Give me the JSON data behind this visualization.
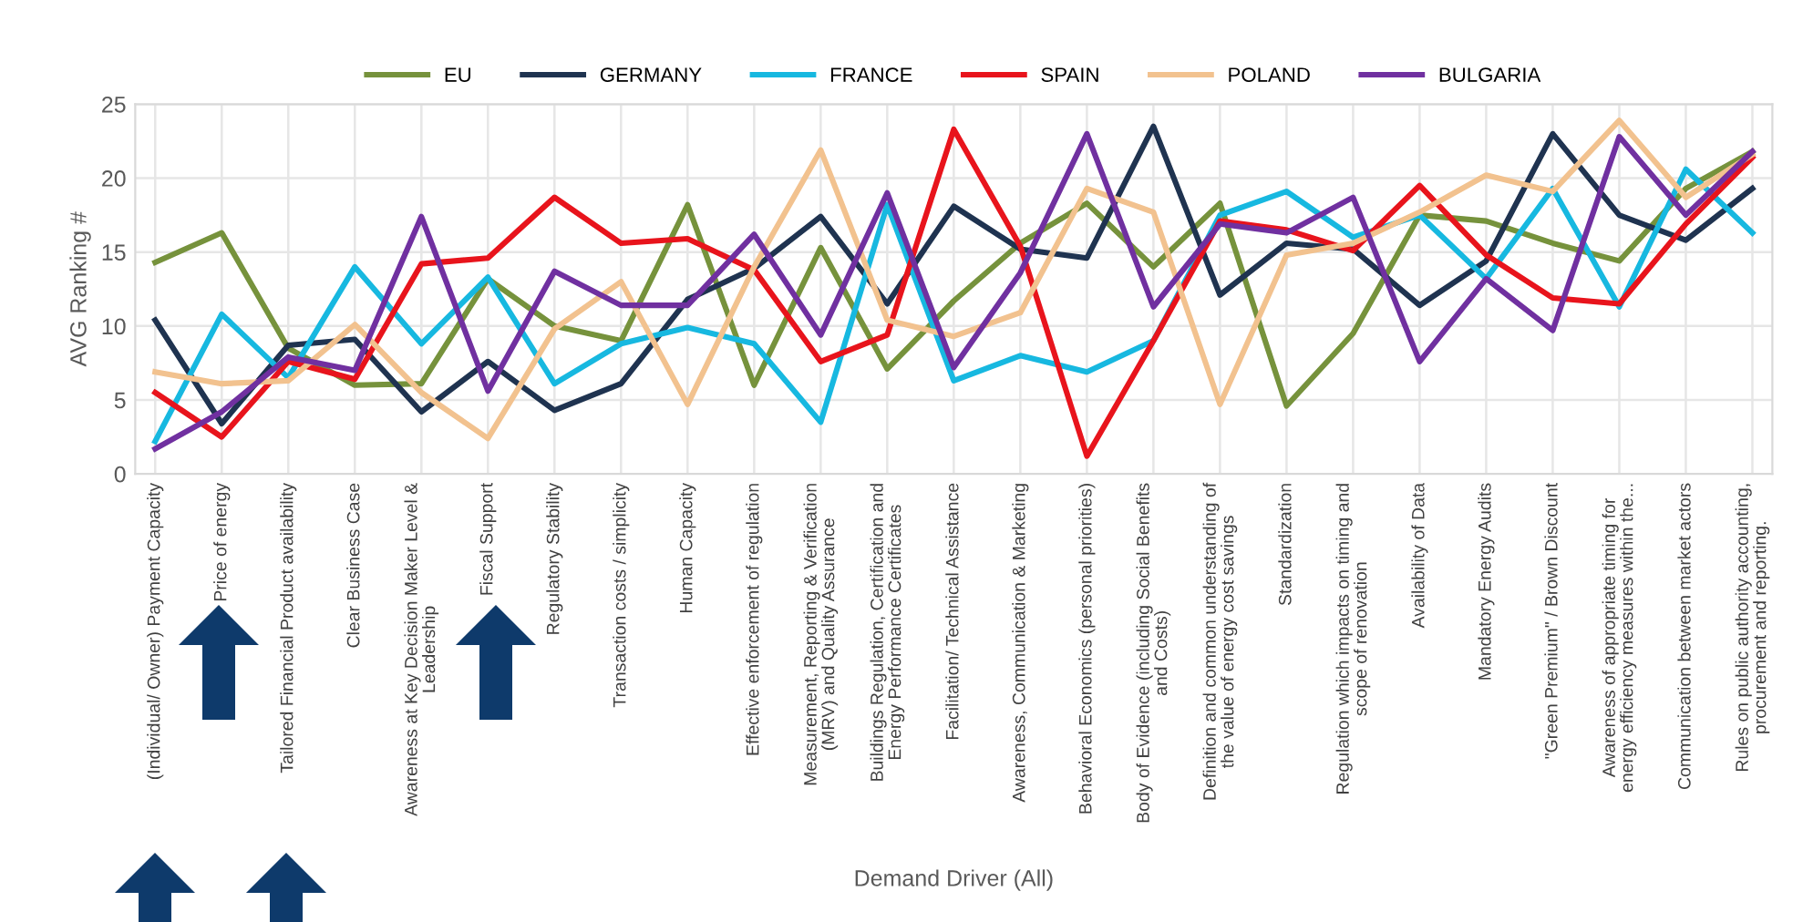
{
  "chart_data": {
    "type": "line",
    "categories": [
      "(Individual/ Owner) Payment Capacity",
      "Price of energy",
      "Tailored Financial Product availability",
      "Clear Business Case",
      "Awareness at Key Decision Maker Level &\nLeadership",
      "Fiscal Support",
      "Regulatory Stability",
      "Transaction costs / simplicity",
      "Human Capacity",
      "Effective enforcement of regulation",
      "Measurement, Reporting & Verification\n(MRV) and Quality Assurance",
      "Buildings Regulation, Certification and\nEnergy Performance Certificates",
      "Facilitation/ Technical Assistance",
      "Awareness, Communication & Marketing",
      "Behavioral Economics (personal priorities)",
      "Body of Evidence (including Social Benefits\nand Costs)",
      "Definition and common understanding of\nthe value of energy cost savings",
      "Standardization",
      "Regulation which impacts on timing and\nscope of renovation",
      "Availability of Data",
      "Mandatory Energy Audits",
      "\"Green Premium\" / Brown Discount",
      "Awareness of appropriate timing for\nenergy efficiency measures within the...",
      "Communication between market actors",
      "Rules on public authority accounting,\nprocurement and reporting."
    ],
    "series": [
      {
        "name": "EU",
        "color": "#76923c",
        "values": [
          14.3,
          16.3,
          8.5,
          6.0,
          6.1,
          13.2,
          10.0,
          9.0,
          18.2,
          6.0,
          15.3,
          7.1,
          11.7,
          15.6,
          18.3,
          14.0,
          18.3,
          4.6,
          9.5,
          17.5,
          17.1,
          15.6,
          14.4,
          19.3,
          21.8
        ]
      },
      {
        "name": "GERMANY",
        "color": "#1f3350",
        "values": [
          10.4,
          3.4,
          8.7,
          9.1,
          4.2,
          7.6,
          4.3,
          6.1,
          11.8,
          13.9,
          17.4,
          11.5,
          18.1,
          15.2,
          14.6,
          23.5,
          12.1,
          15.6,
          15.2,
          11.4,
          14.4,
          23.0,
          17.5,
          15.8,
          19.3
        ]
      },
      {
        "name": "FRANCE",
        "color": "#17b8e0",
        "values": [
          2.2,
          10.8,
          6.5,
          14.0,
          8.8,
          13.3,
          6.1,
          8.8,
          9.9,
          8.8,
          3.5,
          18.2,
          6.3,
          8.0,
          6.9,
          9.0,
          17.5,
          19.1,
          16.0,
          17.5,
          13.2,
          19.3,
          11.3,
          20.6,
          16.3
        ]
      },
      {
        "name": "SPAIN",
        "color": "#e8141c",
        "values": [
          5.5,
          2.5,
          7.6,
          6.4,
          14.2,
          14.6,
          18.7,
          15.6,
          15.9,
          13.8,
          7.6,
          9.4,
          23.3,
          15.4,
          1.2,
          9.0,
          17.1,
          16.5,
          15.1,
          19.5,
          14.8,
          11.9,
          11.5,
          16.9,
          21.4
        ]
      },
      {
        "name": "POLAND",
        "color": "#f2c28f",
        "values": [
          6.9,
          6.1,
          6.3,
          10.1,
          5.5,
          2.4,
          9.8,
          13.0,
          4.7,
          14.0,
          21.9,
          10.4,
          9.3,
          10.9,
          19.3,
          17.7,
          4.7,
          14.8,
          15.6,
          17.7,
          20.2,
          19.1,
          23.9,
          18.7,
          21.6
        ]
      },
      {
        "name": "BULGARIA",
        "color": "#7030a0",
        "values": [
          1.7,
          4.2,
          7.9,
          7.0,
          17.4,
          5.6,
          13.7,
          11.4,
          11.4,
          16.2,
          9.4,
          19.0,
          7.2,
          13.6,
          23.0,
          11.3,
          16.9,
          16.3,
          18.7,
          7.6,
          13.2,
          9.7,
          22.8,
          17.5,
          21.8
        ]
      }
    ],
    "ylim": [
      0,
      25
    ],
    "yticks": [
      0,
      5,
      10,
      15,
      20,
      25
    ],
    "ylabel": "AVG Ranking #",
    "xlabel": "Demand Driver (All)",
    "grid": true,
    "legend": "top",
    "marker": "none",
    "line_style": "solid"
  }
}
